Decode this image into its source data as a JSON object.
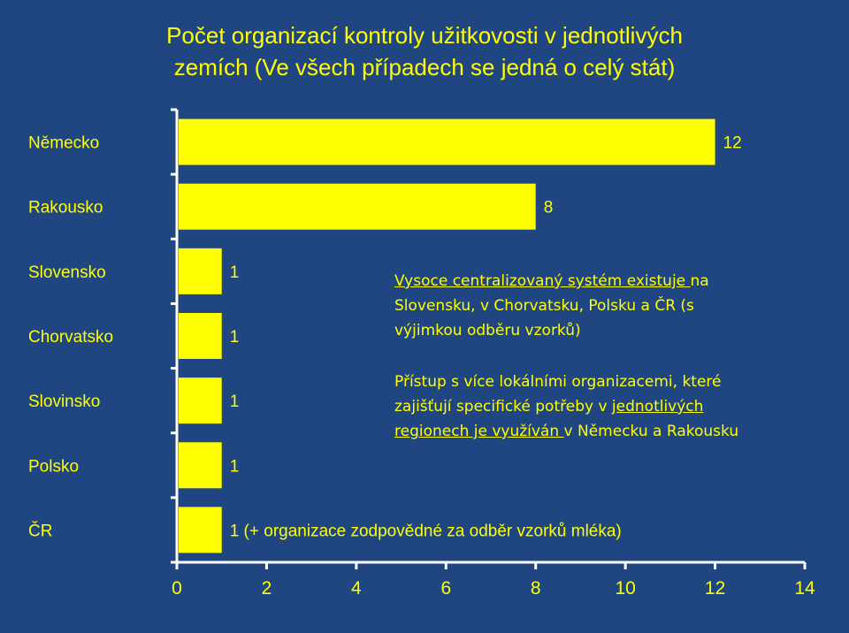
{
  "title_line1": "Počet organizací kontroly užitkovosti v jednotlivých",
  "title_line2": "zemích (Ve všech případech se jedná o celý stát)",
  "colors": {
    "background": "#1f4681",
    "bar": "#ffff00",
    "text": "#ffff00",
    "axis": "#ffffff"
  },
  "chart_data": {
    "type": "bar",
    "orientation": "horizontal",
    "categories": [
      "Německo",
      "Rakousko",
      "Slovensko",
      "Chorvatsko",
      "Slovinsko",
      "Polsko",
      "ČR"
    ],
    "values": [
      12,
      8,
      1,
      1,
      1,
      1,
      1
    ],
    "data_labels": [
      "12",
      "8",
      "1",
      "1",
      "1",
      "1",
      "1 (+ organizace zodpovědné za odběr vzorků mléka)"
    ],
    "xlim": [
      0,
      14
    ],
    "x_ticks": [
      0,
      2,
      4,
      6,
      8,
      10,
      12,
      14
    ],
    "grid": false,
    "annotations": [
      {
        "underlined": "Vysoce centralizovaný systém existuje ",
        "rest": "na Slovensku, v Chorvatsku, Polsku a ČR (s výjimkou odběru vzorků)"
      },
      {
        "plain": "Přístup s více lokálními organizacemi, které zajišťují specifické potřeby v ",
        "underlined": "jednotlivých regionech je využíván ",
        "rest": "v Německu a Rakousku"
      }
    ]
  }
}
